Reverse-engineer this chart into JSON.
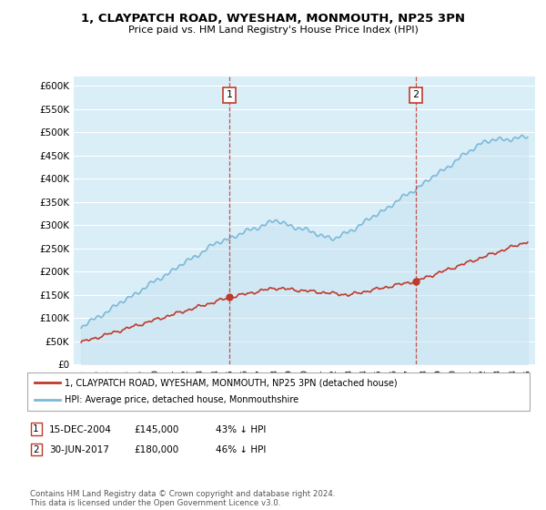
{
  "title_line1": "1, CLAYPATCH ROAD, WYESHAM, MONMOUTH, NP25 3PN",
  "title_line2": "Price paid vs. HM Land Registry's House Price Index (HPI)",
  "ylim": [
    0,
    620000
  ],
  "yticks": [
    0,
    50000,
    100000,
    150000,
    200000,
    250000,
    300000,
    350000,
    400000,
    450000,
    500000,
    550000,
    600000
  ],
  "ytick_labels": [
    "£0",
    "£50K",
    "£100K",
    "£150K",
    "£200K",
    "£250K",
    "£300K",
    "£350K",
    "£400K",
    "£450K",
    "£500K",
    "£550K",
    "£600K"
  ],
  "hpi_color": "#7db8d8",
  "hpi_fill_color": "#c8e4f3",
  "price_color": "#c0392b",
  "dashed_line_color": "#c0392b",
  "bg_color": "#daeef7",
  "sale1_x": 2004.96,
  "sale1_y": 145000,
  "sale2_x": 2017.5,
  "sale2_y": 180000,
  "legend_line1": "1, CLAYPATCH ROAD, WYESHAM, MONMOUTH, NP25 3PN (detached house)",
  "legend_line2": "HPI: Average price, detached house, Monmouthshire",
  "table_row1": [
    "1",
    "15-DEC-2004",
    "£145,000",
    "43% ↓ HPI"
  ],
  "table_row2": [
    "2",
    "30-JUN-2017",
    "£180,000",
    "46% ↓ HPI"
  ],
  "footnote": "Contains HM Land Registry data © Crown copyright and database right 2024.\nThis data is licensed under the Open Government Licence v3.0.",
  "xmin": 1994.5,
  "xmax": 2025.5
}
